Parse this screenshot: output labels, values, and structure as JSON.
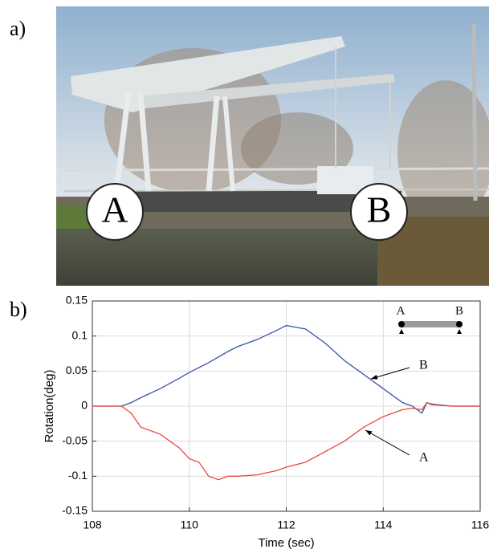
{
  "panels": {
    "a": "a)",
    "b": "b)"
  },
  "photo_labels": [
    "A",
    "B"
  ],
  "inset_labels": [
    "A",
    "B"
  ],
  "chart_data": {
    "type": "line",
    "xlabel": "Time (sec)",
    "ylabel": "Rotation(deg)",
    "x": [
      108,
      108.6,
      108.8,
      109,
      109.4,
      109.8,
      110,
      110.2,
      110.4,
      110.6,
      110.8,
      111,
      111.4,
      111.8,
      112,
      112.4,
      112.8,
      113.2,
      113.6,
      114,
      114.4,
      114.6,
      114.8,
      114.9,
      115,
      115.4,
      116
    ],
    "series": [
      {
        "name": "B",
        "color": "#3a55a8",
        "values": [
          0,
          0,
          0.005,
          0.012,
          0.025,
          0.04,
          0.048,
          0.055,
          0.062,
          0.07,
          0.078,
          0.085,
          0.095,
          0.108,
          0.115,
          0.11,
          0.09,
          0.065,
          0.045,
          0.025,
          0.005,
          0.0,
          -0.01,
          0.005,
          0.003,
          0,
          0
        ]
      },
      {
        "name": "A",
        "color": "#e8483f",
        "values": [
          0,
          0,
          -0.01,
          -0.03,
          -0.04,
          -0.06,
          -0.075,
          -0.08,
          -0.1,
          -0.105,
          -0.1,
          -0.1,
          -0.098,
          -0.092,
          -0.087,
          -0.08,
          -0.065,
          -0.05,
          -0.03,
          -0.015,
          -0.005,
          -0.003,
          -0.005,
          0.005,
          0.002,
          0,
          0
        ]
      }
    ],
    "xlim": [
      108,
      116
    ],
    "xticks": [
      108,
      110,
      112,
      114,
      116
    ],
    "ylim": [
      -0.15,
      0.15
    ],
    "yticks": [
      -0.15,
      -0.1,
      -0.05,
      0,
      0.05,
      0.1,
      0.15
    ],
    "grid": true
  }
}
